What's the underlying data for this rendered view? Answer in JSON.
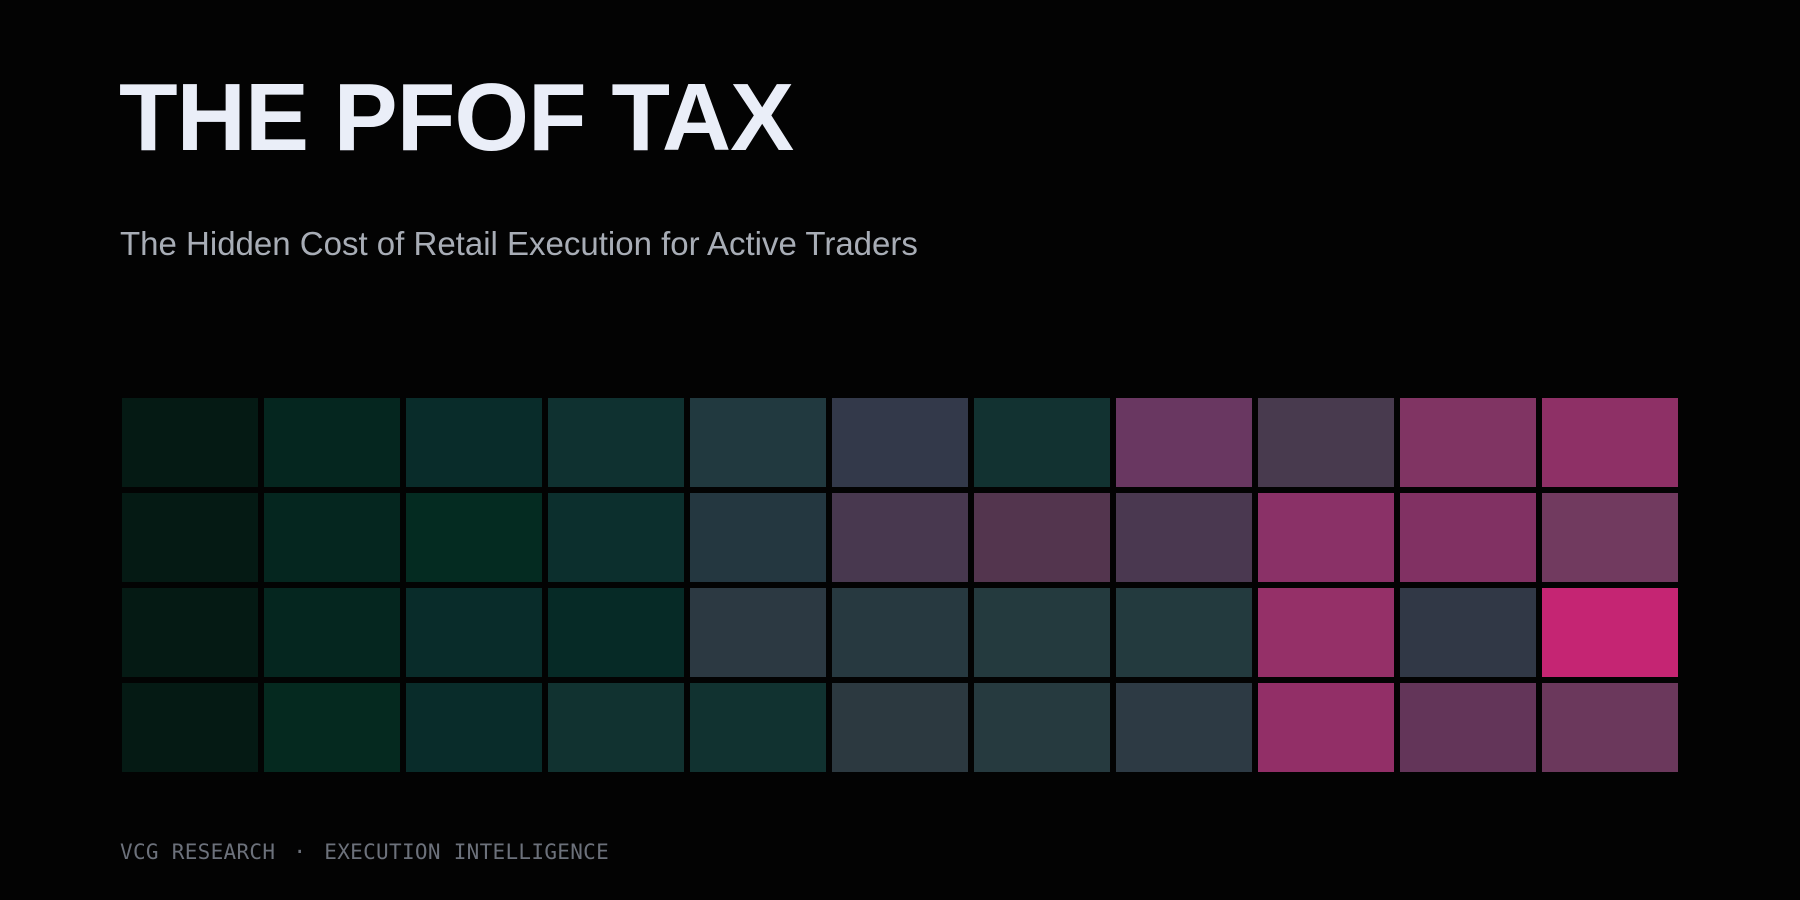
{
  "title": "THE PFOF TAX",
  "subtitle": "The Hidden Cost of Retail Execution for Active Traders",
  "footer": {
    "left": "VCG RESEARCH",
    "separator": "·",
    "right": "EXECUTION INTELLIGENCE"
  },
  "heatmap": {
    "rows": [
      [
        "#051a14",
        "#05261f",
        "#092c2a",
        "#0f3130",
        "#21393f",
        "#33394a",
        "#123231",
        "#693761",
        "#483a4e",
        "#803463",
        "#8e3066"
      ],
      [
        "#051a14",
        "#05261f",
        "#042b21",
        "#0c2f2d",
        "#243740",
        "#48384f",
        "#53354e",
        "#4a3850",
        "#8a3167",
        "#813163",
        "#713a5f"
      ],
      [
        "#051a14",
        "#05261f",
        "#092c2a",
        "#062a26",
        "#2c3942",
        "#273940",
        "#243a3e",
        "#233a3e",
        "#953068",
        "#313846",
        "#c52573"
      ],
      [
        "#051a14",
        "#05291f",
        "#092c2a",
        "#113230",
        "#113230",
        "#2c3940",
        "#263a3f",
        "#2d3a44",
        "#922f67",
        "#633559",
        "#6b385c"
      ]
    ]
  }
}
